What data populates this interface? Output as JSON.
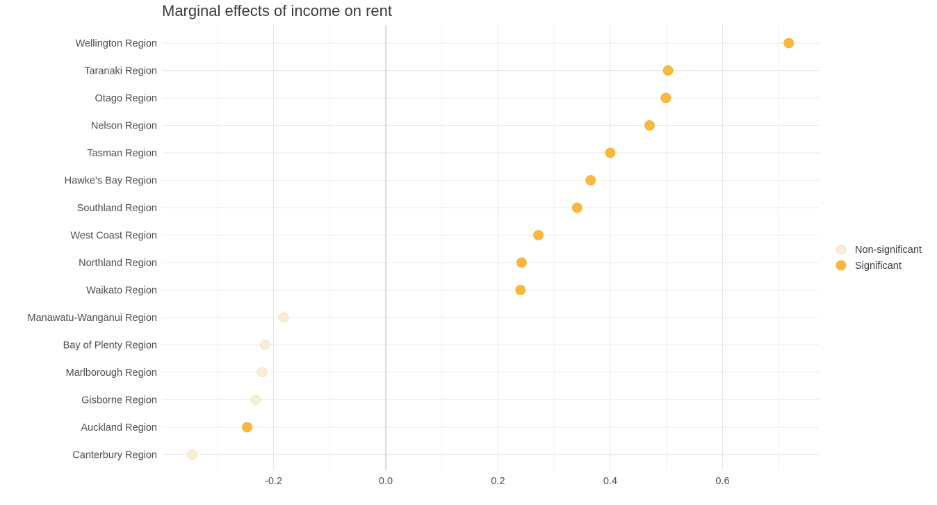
{
  "chart_data": {
    "type": "scatter",
    "title": "Marginal effects of income on rent",
    "xlabel": "",
    "ylabel": "",
    "xlim": [
      -0.4,
      0.78
    ],
    "x_ticks": [
      -0.2,
      0.0,
      0.2,
      0.4,
      0.6
    ],
    "x_tick_labels": [
      "-0.2",
      "0.0",
      "0.2",
      "0.4",
      "0.6"
    ],
    "grid": true,
    "legend_position": "right",
    "legend": [
      {
        "name": "Non-significant",
        "color": "#FAEDD6"
      },
      {
        "name": "Significant",
        "color": "#F9B83E"
      }
    ],
    "categories": [
      "Wellington Region",
      "Taranaki Region",
      "Otago Region",
      "Nelson Region",
      "Tasman Region",
      "Hawke's Bay Region",
      "Southland Region",
      "West Coast Region",
      "Northland Region",
      "Waikato Region",
      "Manawatu-Wanganui Region",
      "Bay of Plenty Region",
      "Marlborough Region",
      "Gisborne Region",
      "Auckland Region",
      "Canterbury Region"
    ],
    "values": [
      0.718,
      0.503,
      0.499,
      0.47,
      0.4,
      0.365,
      0.341,
      0.272,
      0.242,
      0.24,
      -0.182,
      -0.215,
      -0.22,
      -0.232,
      -0.247,
      -0.345
    ],
    "significance": [
      "Significant",
      "Significant",
      "Significant",
      "Significant",
      "Significant",
      "Significant",
      "Significant",
      "Significant",
      "Significant",
      "Significant",
      "Non-significant",
      "Non-significant",
      "Non-significant",
      "Non-significant",
      "Significant",
      "Non-significant"
    ]
  }
}
